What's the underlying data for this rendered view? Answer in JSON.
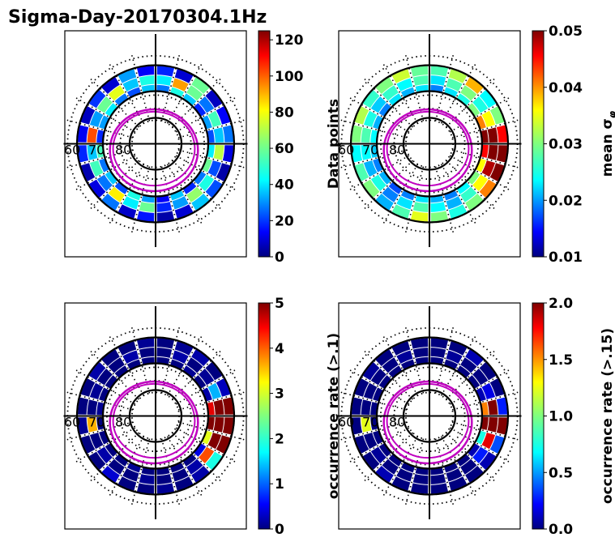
{
  "figure": {
    "title": "Sigma-Day-20170304.1Hz"
  },
  "chart_data": [
    {
      "type": "heatmap",
      "projection": "polar",
      "panel": "top-left",
      "lat_labels": [
        "60",
        "70",
        "80"
      ],
      "colormap": "jet",
      "colorbar": {
        "label": "Data points",
        "range": [
          0,
          125
        ],
        "ticks": [
          "0",
          "20",
          "40",
          "60",
          "80",
          "100",
          "120"
        ],
        "tick_values": [
          0,
          20,
          40,
          60,
          80,
          100,
          120
        ]
      },
      "ring_values": [
        {
          "inner": 0.88,
          "outer": 0.99,
          "values": [
            20,
            10,
            60,
            8,
            15,
            30,
            12,
            5,
            25,
            40,
            10,
            5,
            18,
            9,
            30,
            12,
            6,
            20,
            14,
            8,
            22,
            10,
            35,
            15
          ]
        },
        {
          "inner": 0.76,
          "outer": 0.87,
          "values": [
            45,
            90,
            60,
            30,
            55,
            40,
            70,
            25,
            50,
            65,
            35,
            20,
            60,
            45,
            80,
            30,
            55,
            40,
            100,
            35,
            60,
            75,
            40,
            50
          ]
        },
        {
          "inner": 0.66,
          "outer": 0.75,
          "values": [
            30,
            50,
            40,
            20,
            35,
            25,
            45,
            60,
            30,
            20,
            40,
            15,
            35,
            50,
            25,
            40,
            30,
            55,
            20,
            35,
            45,
            30,
            25,
            40
          ]
        }
      ]
    },
    {
      "type": "heatmap",
      "projection": "polar",
      "panel": "top-right",
      "lat_labels": [
        "60",
        "70",
        "80"
      ],
      "colormap": "jet",
      "colorbar": {
        "label": "mean σ",
        "label_subscript": "φ",
        "range": [
          0.01,
          0.05
        ],
        "ticks": [
          "0.01",
          "0.02",
          "0.03",
          "0.04",
          "0.05"
        ],
        "tick_values": [
          0.01,
          0.02,
          0.03,
          0.04,
          0.05
        ]
      },
      "ring_values": [
        {
          "inner": 0.88,
          "outer": 0.99,
          "values": [
            0.028,
            0.032,
            0.038,
            0.025,
            0.03,
            0.045,
            0.05,
            0.05,
            0.04,
            0.03,
            0.026,
            0.03,
            0.034,
            0.028,
            0.022,
            0.03,
            0.028,
            0.025,
            0.03,
            0.032,
            0.027,
            0.03,
            0.033,
            0.029
          ]
        },
        {
          "inner": 0.76,
          "outer": 0.87,
          "values": [
            0.024,
            0.028,
            0.03,
            0.026,
            0.035,
            0.05,
            0.05,
            0.048,
            0.035,
            0.027,
            0.022,
            0.025,
            0.028,
            0.024,
            0.02,
            0.026,
            0.022,
            0.025,
            0.028,
            0.026,
            0.023,
            0.027,
            0.025,
            0.028
          ]
        },
        {
          "inner": 0.66,
          "outer": 0.75,
          "values": [
            0.02,
            0.024,
            0.026,
            0.03,
            0.04,
            0.05,
            0.045,
            0.035,
            0.03,
            0.025,
            0.02,
            0.022,
            0.024,
            0.02,
            0.018,
            0.022,
            0.02,
            0.023,
            0.025,
            0.022,
            0.02,
            0.024,
            0.022,
            0.024
          ]
        }
      ]
    },
    {
      "type": "heatmap",
      "projection": "polar",
      "panel": "bottom-left",
      "lat_labels": [
        "60",
        "70",
        "80"
      ],
      "colormap": "jet",
      "colorbar": {
        "label": "occurrence rate (>.1)",
        "range": [
          0,
          5
        ],
        "ticks": [
          "0",
          "1",
          "2",
          "3",
          "4",
          "5"
        ],
        "tick_values": [
          0,
          1,
          2,
          3,
          4,
          5
        ]
      },
      "ring_values": [
        {
          "inner": 0.88,
          "outer": 0.99,
          "values": [
            0,
            0.1,
            0.2,
            0,
            0.3,
            5,
            5,
            5,
            2,
            0.2,
            0,
            0.1,
            0,
            0,
            0.4,
            0,
            0,
            0.1,
            0,
            0,
            0.2,
            0,
            0,
            0.1
          ]
        },
        {
          "inner": 0.76,
          "outer": 0.87,
          "values": [
            0,
            0.2,
            0,
            0.1,
            1.5,
            5,
            5,
            5,
            4,
            0.2,
            0,
            0,
            0.1,
            0,
            0,
            0.2,
            0,
            3.5,
            0,
            0.1,
            0,
            0,
            0.2,
            0
          ]
        },
        {
          "inner": 0.66,
          "outer": 0.75,
          "values": [
            0,
            0,
            0.1,
            0,
            0.2,
            4.5,
            5,
            3,
            0.5,
            0,
            0,
            0,
            0,
            0.1,
            0,
            0,
            0,
            0,
            0.1,
            0,
            0,
            0,
            0,
            0
          ]
        }
      ]
    },
    {
      "type": "heatmap",
      "projection": "polar",
      "panel": "bottom-right",
      "lat_labels": [
        "60",
        "70",
        "80"
      ],
      "colormap": "jet",
      "colorbar": {
        "label": "occurrence rate (>.15)",
        "range": [
          0,
          2
        ],
        "ticks": [
          "0.0",
          "0.5",
          "1.0",
          "1.5",
          "2.0"
        ],
        "tick_values": [
          0,
          0.5,
          1,
          1.5,
          2
        ]
      },
      "ring_values": [
        {
          "inner": 0.88,
          "outer": 0.99,
          "values": [
            0,
            0,
            0.1,
            0,
            0,
            0.3,
            2,
            0.4,
            0.1,
            0,
            0,
            0,
            0,
            0,
            0.1,
            0,
            0,
            0,
            0,
            0,
            0.05,
            0,
            0,
            0
          ]
        },
        {
          "inner": 0.76,
          "outer": 0.87,
          "values": [
            0,
            0.05,
            0,
            0,
            0.2,
            2,
            2,
            1.8,
            0.3,
            0,
            0,
            0,
            0,
            0,
            0,
            0.05,
            0,
            1.2,
            0,
            0,
            0,
            0,
            0.05,
            0
          ]
        },
        {
          "inner": 0.66,
          "outer": 0.75,
          "values": [
            0,
            0,
            0,
            0,
            0.1,
            1.5,
            2,
            0.8,
            0.1,
            0,
            0,
            0,
            0,
            0,
            0,
            0,
            0,
            0,
            0,
            0,
            0,
            0,
            0,
            0
          ]
        }
      ]
    }
  ]
}
